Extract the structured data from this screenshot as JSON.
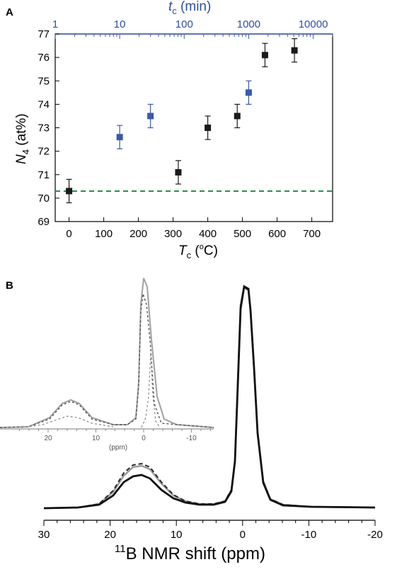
{
  "panel_labels": {
    "a": "A",
    "b": "B"
  },
  "colors": {
    "black": "#1a1a1a",
    "blue": "#3a5aa8",
    "reference": "#2e8b57",
    "curve_gray": "#9a9a9a"
  },
  "chart_data": [
    {
      "type": "scatter",
      "panel": "A",
      "xlabel_main": "T",
      "xlabel_sub": "c",
      "xlabel_unit": " (",
      "xlabel_deg": "o",
      "xlabel_end": "C)",
      "ylabel_main": "N",
      "ylabel_sub": "4",
      "ylabel_unit": " (at%)",
      "x2label_main": "t",
      "x2label_sub": "c",
      "x2label_unit": " (min)",
      "xlim": [
        -40,
        760
      ],
      "ylim": [
        69,
        77
      ],
      "x2_scale": "log",
      "x2lim": [
        1,
        20000
      ],
      "xticks": [
        0,
        100,
        200,
        300,
        400,
        500,
        600,
        700
      ],
      "yticks": [
        69,
        70,
        71,
        72,
        73,
        74,
        75,
        76,
        77
      ],
      "x2ticks": [
        1,
        10,
        100,
        1000,
        10000
      ],
      "reference_line": 70.3,
      "series": [
        {
          "axis": "bottom",
          "color": "black",
          "x": [
            0,
            315,
            400,
            485,
            565,
            650
          ],
          "y": [
            70.3,
            71.1,
            73.0,
            73.5,
            76.1,
            76.3
          ],
          "err": [
            0.5,
            0.5,
            0.5,
            0.5,
            0.5,
            0.5
          ]
        },
        {
          "axis": "top",
          "color": "blue",
          "x": [
            10,
            30,
            1000
          ],
          "y": [
            72.6,
            73.5,
            74.5
          ],
          "err": [
            0.5,
            0.5,
            0.5
          ]
        }
      ]
    },
    {
      "type": "line",
      "panel": "B",
      "xlabel_sup": "11",
      "xlabel": "B NMR shift (ppm)",
      "xlim": [
        30,
        -20
      ],
      "xticks": [
        30,
        20,
        10,
        0,
        -10,
        -20
      ],
      "inset": {
        "xlabel": "(ppm)",
        "xticks": [
          20,
          10,
          0,
          -10
        ]
      }
    }
  ]
}
